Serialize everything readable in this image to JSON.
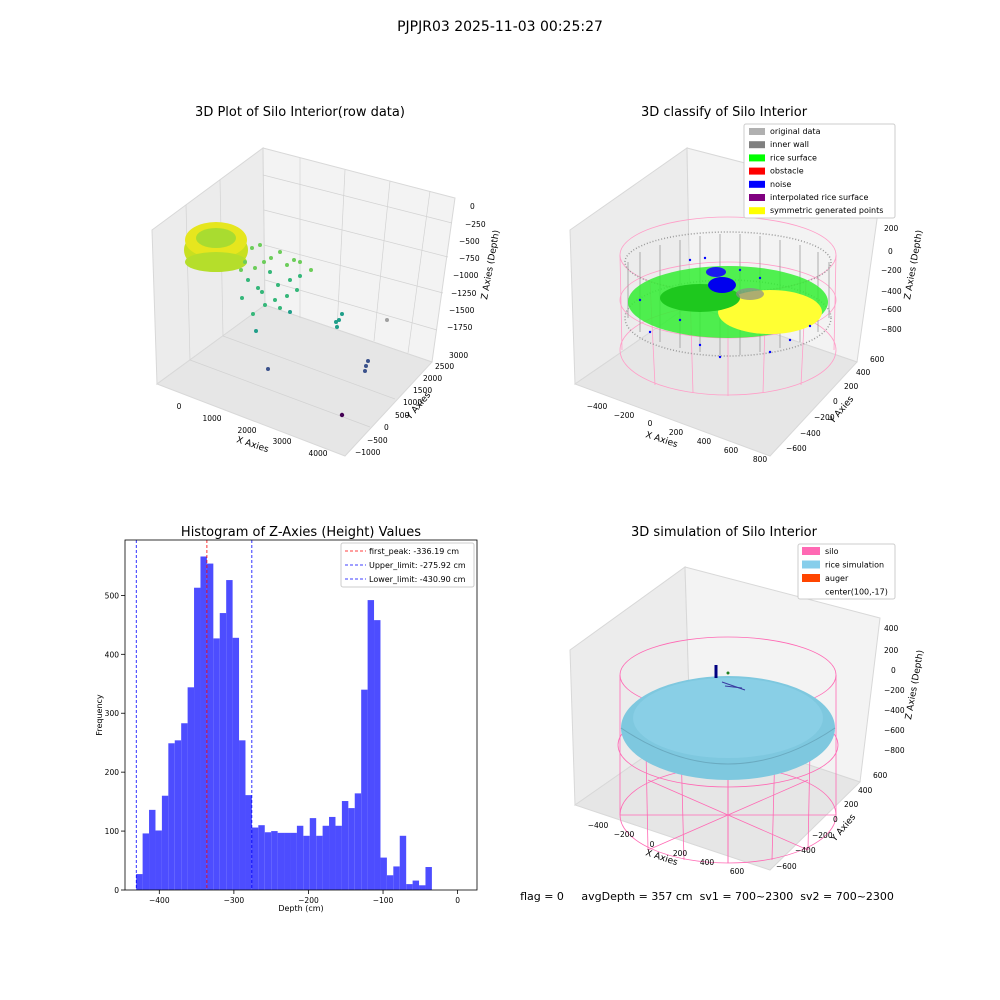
{
  "figure": {
    "suptitle": "PJPJR03 2025-11-03 00:25:27",
    "footer": "flag = 0     avgDepth = 357 cm  sv1 = 700~2300  sv2 = 700~2300"
  },
  "colors": {
    "hist_bar": "#4d4dff",
    "peak_line": "#ff0000",
    "limit_line": "#0000ff",
    "silo_wire": "#ff69b4",
    "rice_sim": "#87ceeb",
    "auger": "#ff4500",
    "rice_surface": "#00ff00",
    "noise": "#0000ff",
    "inner_wall": "#808080",
    "symmetric": "#ffff00",
    "interpolated": "#800080",
    "original": "#b0b0b0",
    "obstacle": "#ff0000"
  },
  "panels": {
    "raw": {
      "title": "3D Plot of Silo Interior(row data)",
      "xlabel": "X Axies",
      "ylabel": "Y Axies",
      "zlabel": "Z Axies (Depth)",
      "xticks": [
        "0",
        "1000",
        "2000",
        "3000",
        "4000"
      ],
      "yticks": [
        "−1000",
        "−500",
        "0",
        "500",
        "1000",
        "1500",
        "2000",
        "2500",
        "3000"
      ],
      "zticks": [
        "0",
        "−250",
        "−500",
        "−750",
        "−1000",
        "−1250",
        "−1500",
        "−1750"
      ]
    },
    "classify": {
      "title": "3D classify of Silo Interior",
      "xlabel": "X Axies",
      "ylabel": "Y Axies",
      "zlabel": "Z Axies (Depth)",
      "xticks": [
        "−400",
        "−200",
        "0",
        "200",
        "400",
        "600",
        "800"
      ],
      "yticks": [
        "−600",
        "−400",
        "−200",
        "0",
        "200",
        "400",
        "600"
      ],
      "zticks": [
        "200",
        "0",
        "−200",
        "−400",
        "−600",
        "−800"
      ],
      "legend": [
        {
          "label": "original data",
          "color": "#b0b0b0"
        },
        {
          "label": "inner wall",
          "color": "#808080"
        },
        {
          "label": "rice surface",
          "color": "#00ff00"
        },
        {
          "label": "obstacle",
          "color": "#ff0000"
        },
        {
          "label": "noise",
          "color": "#0000ff"
        },
        {
          "label": "interpolated rice surface",
          "color": "#800080"
        },
        {
          "label": "symmetric generated points",
          "color": "#ffff00"
        }
      ]
    },
    "simulation": {
      "title": "3D simulation of Silo Interior",
      "xlabel": "X Axies",
      "ylabel": "Y Axies",
      "zlabel": "Z Axies (Depth)",
      "xticks": [
        "−400",
        "−200",
        "0",
        "200",
        "400",
        "600"
      ],
      "yticks": [
        "−600",
        "−400",
        "−200",
        "0",
        "200",
        "400",
        "600"
      ],
      "zticks": [
        "400",
        "200",
        "0",
        "−200",
        "−400",
        "−600",
        "−800"
      ],
      "legend": [
        {
          "label": "silo",
          "color": "#ff69b4"
        },
        {
          "label": "rice simulation",
          "color": "#87ceeb"
        },
        {
          "label": "auger",
          "color": "#ff4500"
        },
        {
          "label": "center(100,-17)",
          "color": ""
        }
      ]
    }
  },
  "chart_data": [
    {
      "type": "bar",
      "title": "Histogram of Z-Axies (Height) Values",
      "xlabel": "Depth (cm)",
      "ylabel": "Frequency",
      "xlim": [
        -446,
        26
      ],
      "ylim": [
        0,
        594
      ],
      "xticks": [
        "−400",
        "−300",
        "−200",
        "−100",
        "0"
      ],
      "yticks": [
        "0",
        "100",
        "200",
        "300",
        "400",
        "500"
      ],
      "xtick_values": [
        -400,
        -300,
        -200,
        -100,
        0
      ],
      "ytick_values": [
        0,
        100,
        200,
        300,
        400,
        500
      ],
      "bin_start": -431,
      "bin_width": 8.62,
      "values": [
        27,
        96,
        136,
        101,
        160,
        249,
        254,
        283,
        344,
        513,
        566,
        554,
        427,
        470,
        526,
        428,
        254,
        161,
        106,
        110,
        98,
        100,
        97,
        97,
        97,
        109,
        92,
        122,
        92,
        109,
        124,
        109,
        151,
        139,
        164,
        340,
        492,
        458,
        55,
        25,
        40,
        92,
        10,
        16,
        8,
        39
      ],
      "vlines": [
        {
          "name": "first_peak",
          "label": "first_peak: -336.19 cm",
          "x": -336.19,
          "color": "#ff0000"
        },
        {
          "name": "upper",
          "label": "Upper_limit: -275.92 cm",
          "x": -275.92,
          "color": "#0000ff"
        },
        {
          "name": "lower",
          "label": "Lower_limit: -430.90 cm",
          "x": -430.9,
          "color": "#0000ff"
        }
      ],
      "legend_position": "upper-right"
    }
  ]
}
